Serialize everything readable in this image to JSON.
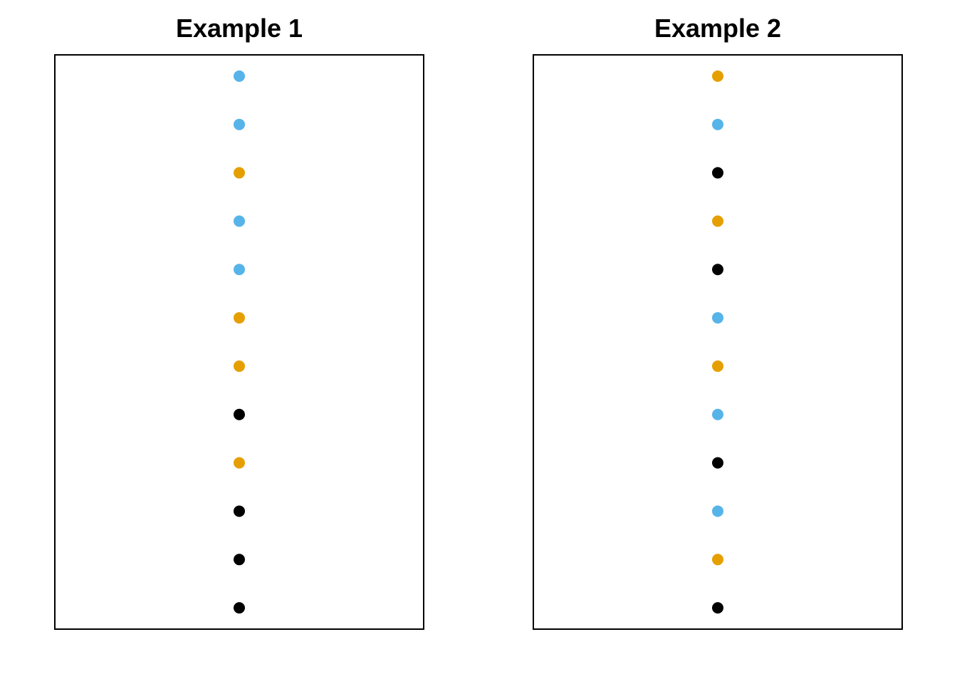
{
  "chart_data": [
    {
      "type": "scatter",
      "title": "Example 1",
      "xlabel": "",
      "ylabel": "",
      "axes_visible": false,
      "grid": false,
      "legend": "none",
      "x": [
        1,
        1,
        1,
        1,
        1,
        1,
        1,
        1,
        1,
        1,
        1,
        1
      ],
      "y": [
        12,
        11,
        10,
        9,
        8,
        7,
        6,
        5,
        4,
        3,
        2,
        1
      ],
      "point_colors": [
        "#56B4E9",
        "#56B4E9",
        "#E69F00",
        "#56B4E9",
        "#56B4E9",
        "#E69F00",
        "#E69F00",
        "#000000",
        "#E69F00",
        "#000000",
        "#000000",
        "#000000"
      ],
      "xlim": [
        0.5,
        1.5
      ],
      "ylim": [
        0.56,
        12.44
      ]
    },
    {
      "type": "scatter",
      "title": "Example 2",
      "xlabel": "",
      "ylabel": "",
      "axes_visible": false,
      "grid": false,
      "legend": "none",
      "x": [
        1,
        1,
        1,
        1,
        1,
        1,
        1,
        1,
        1,
        1,
        1,
        1
      ],
      "y": [
        12,
        11,
        10,
        9,
        8,
        7,
        6,
        5,
        4,
        3,
        2,
        1
      ],
      "point_colors": [
        "#E69F00",
        "#56B4E9",
        "#000000",
        "#E69F00",
        "#000000",
        "#56B4E9",
        "#E69F00",
        "#56B4E9",
        "#000000",
        "#56B4E9",
        "#E69F00",
        "#000000"
      ],
      "xlim": [
        0.5,
        1.5
      ],
      "ylim": [
        0.56,
        12.44
      ]
    }
  ]
}
